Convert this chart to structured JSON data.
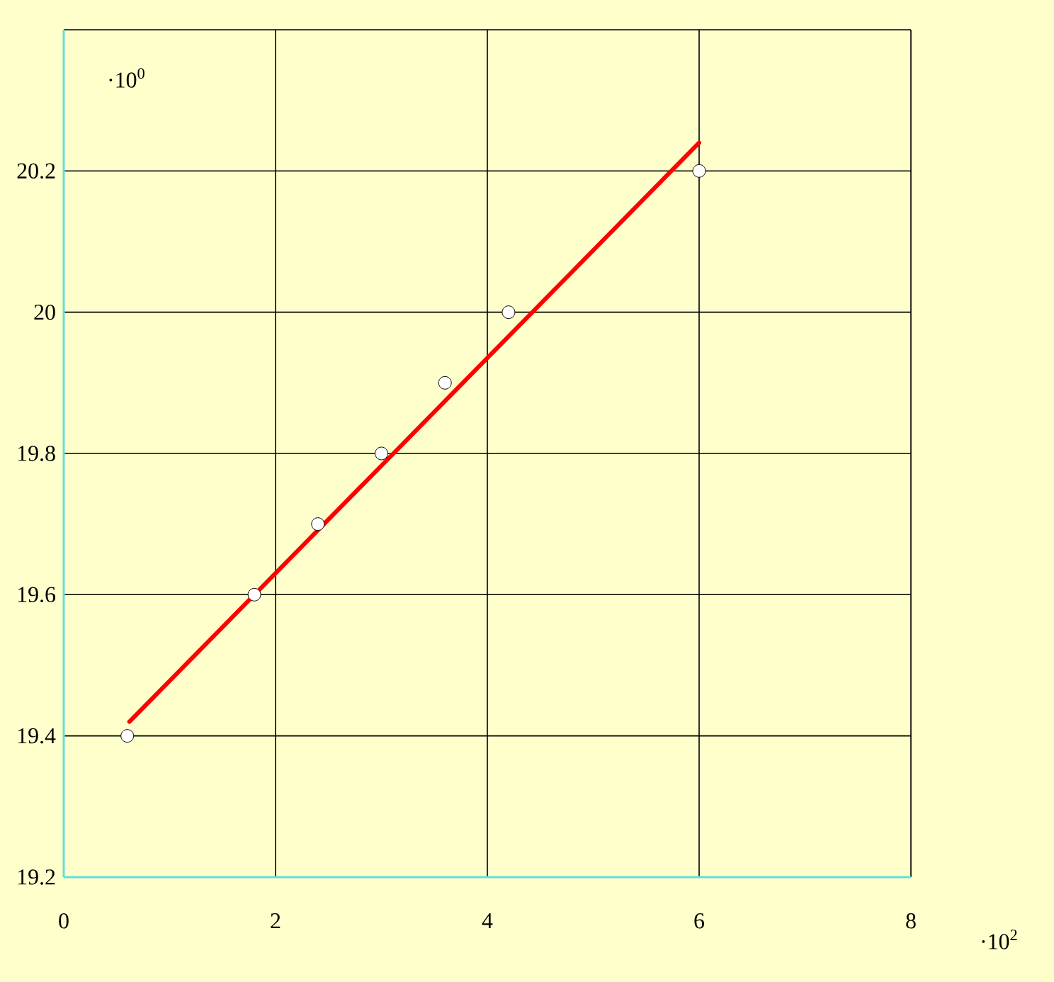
{
  "chart_data": {
    "type": "scatter",
    "xlim": [
      0,
      8
    ],
    "xticks": [
      0,
      2,
      4,
      6,
      8
    ],
    "ylim": [
      19.2,
      20.4
    ],
    "yticks": [
      19.2,
      19.4,
      19.6,
      19.8,
      20,
      20.2,
      {
        "value": 20.4,
        "label": null
      }
    ],
    "grid": true,
    "series": [
      {
        "color": "#ffffff",
        "marker": "circle",
        "x": [
          0.6,
          1.8,
          2.4,
          3.0,
          3.6,
          4.2,
          6.0
        ],
        "values": [
          19.4,
          19.6,
          19.7,
          19.8,
          19.9,
          20.0,
          20.2
        ]
      },
      {
        "type": "line",
        "color": "#ff0000",
        "marker": "none",
        "line_style": "solid",
        "x": [
          0.62,
          6.0
        ],
        "values": [
          19.42,
          20.24
        ]
      }
    ],
    "annotations": [
      "·10$^{0}$",
      "·10$^{2}$"
    ]
  }
}
